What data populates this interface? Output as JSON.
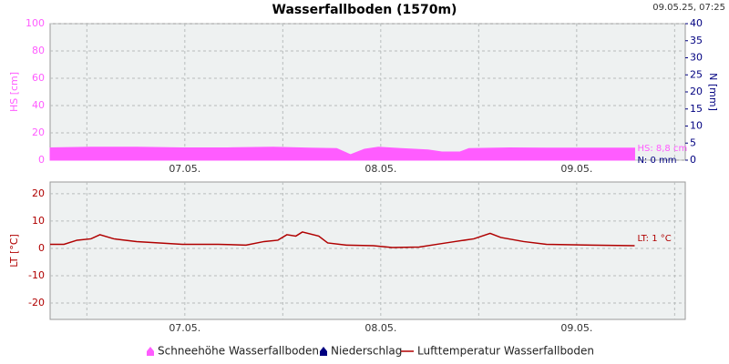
{
  "title": "Wasserfallboden (1570m)",
  "timestamp": "09.05.25, 07:25",
  "chart_data": [
    {
      "type": "area",
      "ylabel": "HS [cm]",
      "y2label": "N [mm]",
      "x": [
        7.5,
        12.5,
        18.1,
        23.7,
        29.2,
        34.8,
        39.3,
        42.6,
        44.3,
        46.0,
        47.7,
        50.5,
        53.8,
        55.5,
        57.7,
        58.8,
        63.8,
        68.3,
        73.9,
        79.1
      ],
      "xlim": [
        7.5,
        85.3
      ],
      "xticks": [
        {
          "value": 24,
          "label": "07.05."
        },
        {
          "value": 48,
          "label": "08.05."
        },
        {
          "value": 72,
          "label": "09.05."
        }
      ],
      "xminor": [
        12,
        36,
        60,
        84
      ],
      "ylim": [
        0,
        100
      ],
      "yticks": [
        0,
        20,
        40,
        60,
        80,
        100
      ],
      "y2lim": [
        0,
        40
      ],
      "y2ticks": [
        0,
        5,
        10,
        15,
        20,
        25,
        30,
        35,
        40
      ],
      "grid": true,
      "series": [
        {
          "name": "Schneehöhe Wasserfallboden",
          "color": "#ff5cff",
          "values": [
            9,
            9.5,
            9.5,
            9,
            9,
            9.5,
            8.8,
            8.5,
            4,
            8,
            9.5,
            8.5,
            7.5,
            6,
            6,
            8.5,
            9,
            8.8,
            8.8,
            8.8
          ]
        },
        {
          "name": "Niederschlag",
          "color": "#000080",
          "axis": "y2",
          "values": [
            0,
            0,
            0,
            0,
            0,
            0,
            0,
            0,
            0,
            0,
            0,
            0,
            0,
            0,
            0,
            0,
            0,
            0,
            0,
            0
          ]
        }
      ],
      "annotations": [
        {
          "text": "HS: 8,8 cm",
          "color": "#ff5cff"
        },
        {
          "text": "N: 0 mm",
          "color": "#000080"
        }
      ]
    },
    {
      "type": "line",
      "ylabel": "LT [°C]",
      "x": [
        7.5,
        9.2,
        10.8,
        12.5,
        13.6,
        15.3,
        18.1,
        20.9,
        23.7,
        28.1,
        31.5,
        33.7,
        35.4,
        36.5,
        37.6,
        38.4,
        40.4,
        41.5,
        43.8,
        47.1,
        49.4,
        52.7,
        54.9,
        57.1,
        59.4,
        61.4,
        62.7,
        65.5,
        68.3,
        73.9,
        79.1
      ],
      "xlim": [
        7.5,
        85.3
      ],
      "xticks": [
        {
          "value": 24,
          "label": "07.05."
        },
        {
          "value": 48,
          "label": "08.05."
        },
        {
          "value": 72,
          "label": "09.05."
        }
      ],
      "xminor": [
        12,
        36,
        60,
        84
      ],
      "ylim": [
        -26,
        24.3
      ],
      "yticks": [
        -20,
        -10,
        0,
        10,
        20
      ],
      "grid": true,
      "series": [
        {
          "name": "Lufttemperatur Wasserfallboden",
          "color": "#b00000",
          "values": [
            1.5,
            1.5,
            3,
            3.5,
            5,
            3.5,
            2.5,
            2,
            1.5,
            1.5,
            1.2,
            2.5,
            3,
            5,
            4.5,
            6,
            4.5,
            2,
            1.2,
            1,
            0.3,
            0.5,
            1.5,
            2.5,
            3.5,
            5.5,
            4,
            2.5,
            1.5,
            1.2,
            1
          ]
        }
      ],
      "annotations": [
        {
          "text": "LT: 1 °C",
          "color": "#b00000"
        }
      ]
    }
  ]
}
